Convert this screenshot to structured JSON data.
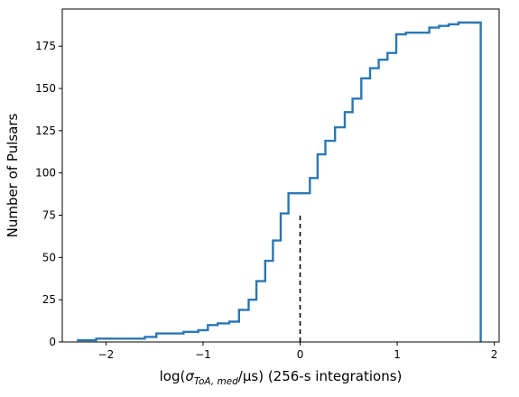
{
  "chart_data": {
    "type": "step",
    "xlabel": {
      "prefix": "log(",
      "sigma": "σ",
      "subscript": "ToA, med",
      "unit": "/μs) (256-s integrations)"
    },
    "ylabel": "Number of Pulsars",
    "xlim": [
      -2.45,
      2.05
    ],
    "ylim": [
      0,
      197
    ],
    "xticks": [
      -2,
      -1,
      0,
      1,
      2
    ],
    "xtick_labels": [
      "−2",
      "−1",
      "0",
      "1",
      "2"
    ],
    "yticks": [
      0,
      25,
      50,
      75,
      100,
      125,
      150,
      175
    ],
    "ytick_labels": [
      "0",
      "25",
      "50",
      "75",
      "100",
      "125",
      "150",
      "175"
    ],
    "grid": false,
    "series": [
      {
        "color": "#2a77b4",
        "x": [
          -2.3,
          -2.1,
          -1.6,
          -1.48,
          -1.2,
          -1.05,
          -0.95,
          -0.85,
          -0.73,
          -0.63,
          -0.53,
          -0.45,
          -0.36,
          -0.28,
          -0.2,
          -0.12,
          -0.05,
          0.0,
          0.1,
          0.18,
          0.26,
          0.36,
          0.46,
          0.54,
          0.63,
          0.72,
          0.81,
          0.9,
          0.99,
          1.09,
          1.19,
          1.33,
          1.43,
          1.53,
          1.63,
          1.73,
          1.86
        ],
        "y": [
          1,
          2,
          3,
          5,
          6,
          7,
          10,
          11,
          12,
          19,
          25,
          36,
          48,
          60,
          76,
          88,
          88,
          88,
          97,
          111,
          119,
          127,
          136,
          144,
          156,
          162,
          167,
          171,
          182,
          183,
          183,
          186,
          187,
          188,
          189,
          189,
          0
        ]
      }
    ],
    "reference_line": {
      "x": 0.0,
      "y_end": 76,
      "style": "dashed",
      "color": "#000000"
    }
  }
}
